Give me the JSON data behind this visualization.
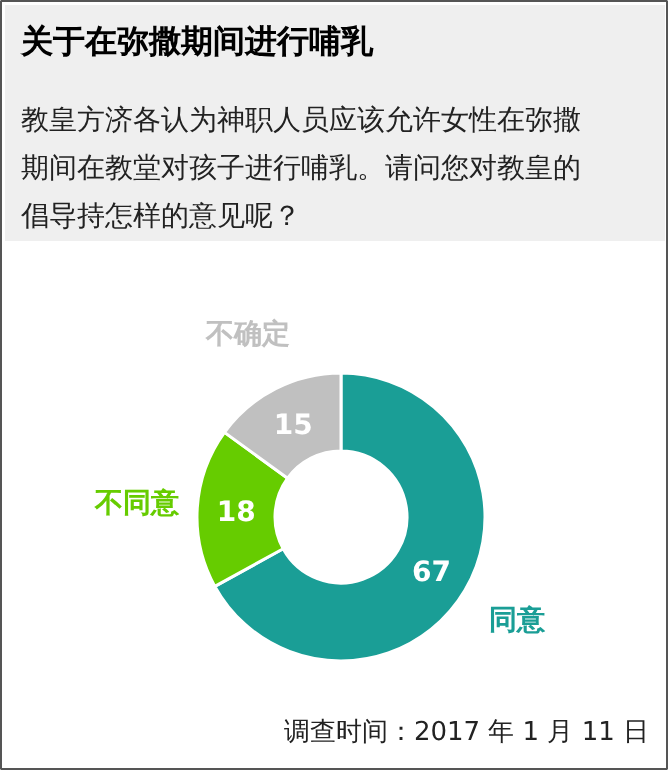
{
  "chart_data": {
    "type": "donut",
    "title": "关于在弥撒期间进行哺乳",
    "subtitle": "教皇方济各认为神职人员应该允许女性在弥撒期间在教堂对孩子进行哺乳。请问您对教皇的倡导持怎样的意见呢？",
    "categories": [
      "同意",
      "不同意",
      "不确定"
    ],
    "values": [
      67,
      18,
      15
    ],
    "colors": [
      "#1a9e96",
      "#66cc00",
      "#c0c0c0"
    ],
    "data_labels": true,
    "annotations": [
      "调查时间：2017 年 1 月 11 日"
    ]
  }
}
